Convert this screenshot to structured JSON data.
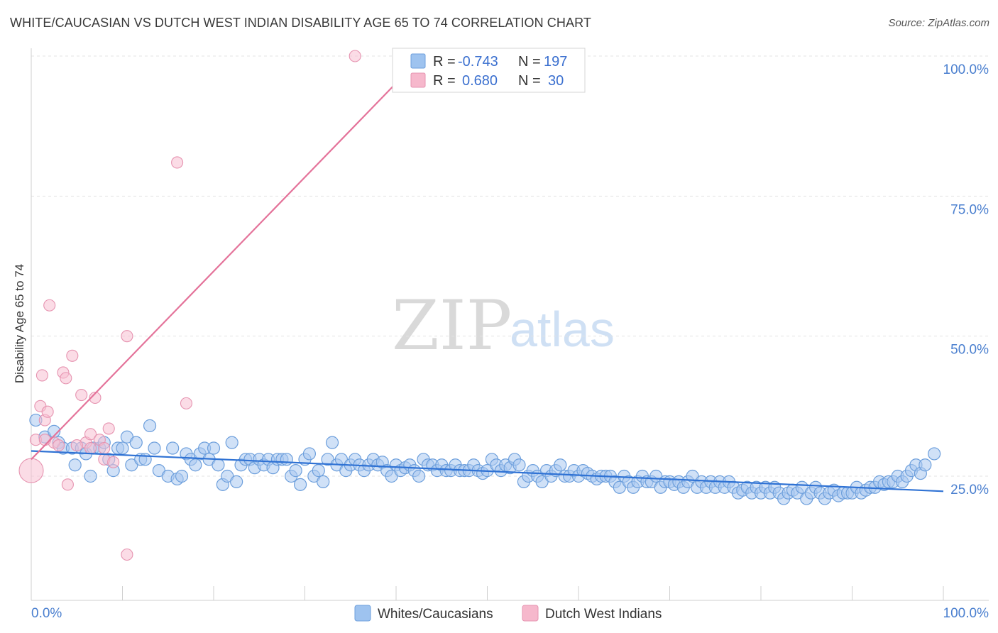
{
  "title": "WHITE/CAUCASIAN VS DUTCH WEST INDIAN DISABILITY AGE 65 TO 74 CORRELATION CHART",
  "source": "Source: ZipAtlas.com",
  "watermark": {
    "zip": "ZIP",
    "atlas": "atlas"
  },
  "legend_box": {
    "rows": [
      {
        "r_label": "R =",
        "r_value": "-0.743",
        "n_label": "N =",
        "n_value": "197",
        "color": "#9ec3ef"
      },
      {
        "r_label": "R =",
        "r_value": "0.680",
        "n_label": "N =",
        "n_value": "30",
        "color": "#f6b8cc"
      }
    ]
  },
  "bottom_legend": [
    {
      "label": "Whites/Caucasians",
      "color": "#9ec3ef"
    },
    {
      "label": "Dutch West Indians",
      "color": "#f6b8cc"
    }
  ],
  "chart_data": {
    "type": "scatter",
    "title": "WHITE/CAUCASIAN VS DUTCH WEST INDIAN DISABILITY AGE 65 TO 74 CORRELATION CHART",
    "xlabel": "",
    "ylabel": "Disability Age 65 to 74",
    "xlim": [
      0,
      100
    ],
    "ylim": [
      0,
      100
    ],
    "x_tick_labels": [
      {
        "value": 0,
        "label": "0.0%"
      },
      {
        "value": 100,
        "label": "100.0%"
      }
    ],
    "y_tick_labels": [
      {
        "value": 25,
        "label": "25.0%"
      },
      {
        "value": 50,
        "label": "50.0%"
      },
      {
        "value": 75,
        "label": "75.0%"
      },
      {
        "value": 100,
        "label": "100.0%"
      }
    ],
    "colors": {
      "blue_fill": "#a9c9f0",
      "blue_stroke": "#6d9fdc",
      "blue_line": "#2f72d4",
      "pink_fill": "#f7c0d2",
      "pink_stroke": "#e693b0",
      "pink_line": "#e4739a"
    },
    "series": [
      {
        "name": "Whites/Caucasians",
        "trend": {
          "x0": 0,
          "y0": 29.5,
          "x1": 100,
          "y1": 22.3
        },
        "points": [
          [
            0.5,
            35
          ],
          [
            1.5,
            32
          ],
          [
            2.5,
            33
          ],
          [
            3,
            31
          ],
          [
            3.5,
            30
          ],
          [
            4.5,
            30
          ],
          [
            4.8,
            27
          ],
          [
            5.5,
            30
          ],
          [
            6,
            29
          ],
          [
            6.5,
            25
          ],
          [
            6.8,
            30
          ],
          [
            7.5,
            30
          ],
          [
            8,
            31
          ],
          [
            8.5,
            28
          ],
          [
            9,
            26
          ],
          [
            9.5,
            30
          ],
          [
            10,
            30
          ],
          [
            10.5,
            32
          ],
          [
            11,
            27
          ],
          [
            11.5,
            31
          ],
          [
            12,
            28
          ],
          [
            12.5,
            28
          ],
          [
            13,
            34
          ],
          [
            13.5,
            30
          ],
          [
            14,
            26
          ],
          [
            15,
            25
          ],
          [
            15.5,
            30
          ],
          [
            16,
            24.5
          ],
          [
            16.5,
            25
          ],
          [
            17,
            29
          ],
          [
            17.5,
            28
          ],
          [
            18,
            27
          ],
          [
            18.5,
            29
          ],
          [
            19,
            30
          ],
          [
            19.5,
            28
          ],
          [
            20,
            30
          ],
          [
            20.5,
            27
          ],
          [
            21,
            23.5
          ],
          [
            21.5,
            25
          ],
          [
            22,
            31
          ],
          [
            22.5,
            24
          ],
          [
            23,
            27
          ],
          [
            23.5,
            28
          ],
          [
            24,
            28
          ],
          [
            24.5,
            26.5
          ],
          [
            25,
            28
          ],
          [
            25.5,
            27
          ],
          [
            26,
            28
          ],
          [
            26.5,
            26.5
          ],
          [
            27,
            28
          ],
          [
            27.5,
            28
          ],
          [
            28,
            28
          ],
          [
            28.5,
            25
          ],
          [
            29,
            26
          ],
          [
            29.5,
            23.5
          ],
          [
            30,
            28
          ],
          [
            30.5,
            29
          ],
          [
            31,
            25
          ],
          [
            31.5,
            26
          ],
          [
            32,
            24
          ],
          [
            32.5,
            28
          ],
          [
            33,
            31
          ],
          [
            33.5,
            27
          ],
          [
            34,
            28
          ],
          [
            34.5,
            26
          ],
          [
            35,
            27
          ],
          [
            35.5,
            28
          ],
          [
            36,
            27
          ],
          [
            36.5,
            26
          ],
          [
            37,
            27
          ],
          [
            37.5,
            28
          ],
          [
            38,
            27
          ],
          [
            38.5,
            27.5
          ],
          [
            39,
            26
          ],
          [
            39.5,
            25
          ],
          [
            40,
            27
          ],
          [
            40.5,
            26
          ],
          [
            41,
            26.5
          ],
          [
            41.5,
            27
          ],
          [
            42,
            26
          ],
          [
            42.5,
            25
          ],
          [
            43,
            28
          ],
          [
            43.5,
            27
          ],
          [
            44,
            27
          ],
          [
            44.5,
            26
          ],
          [
            45,
            27
          ],
          [
            45.5,
            26
          ],
          [
            46,
            26
          ],
          [
            46.5,
            27
          ],
          [
            47,
            26
          ],
          [
            47.5,
            26
          ],
          [
            48,
            26
          ],
          [
            48.5,
            27
          ],
          [
            49,
            26
          ],
          [
            49.5,
            25.5
          ],
          [
            50,
            26
          ],
          [
            50.5,
            28
          ],
          [
            51,
            27
          ],
          [
            51.5,
            26
          ],
          [
            52,
            27
          ],
          [
            52.5,
            26.5
          ],
          [
            53,
            28
          ],
          [
            53.5,
            27
          ],
          [
            54,
            24
          ],
          [
            54.5,
            25
          ],
          [
            55,
            26
          ],
          [
            55.5,
            25
          ],
          [
            56,
            24
          ],
          [
            56.5,
            26
          ],
          [
            57,
            25
          ],
          [
            57.5,
            26
          ],
          [
            58,
            27
          ],
          [
            58.5,
            25
          ],
          [
            59,
            25
          ],
          [
            59.5,
            26
          ],
          [
            60,
            25
          ],
          [
            60.5,
            26
          ],
          [
            61,
            25.5
          ],
          [
            61.5,
            25
          ],
          [
            62,
            24.5
          ],
          [
            62.5,
            25
          ],
          [
            63,
            25
          ],
          [
            63.5,
            25
          ],
          [
            64,
            24
          ],
          [
            64.5,
            23
          ],
          [
            65,
            25
          ],
          [
            65.5,
            24
          ],
          [
            66,
            23
          ],
          [
            66.5,
            24
          ],
          [
            67,
            25
          ],
          [
            67.5,
            24
          ],
          [
            68,
            24
          ],
          [
            68.5,
            25
          ],
          [
            69,
            23
          ],
          [
            69.5,
            24
          ],
          [
            70,
            24
          ],
          [
            70.5,
            23.5
          ],
          [
            71,
            24
          ],
          [
            71.5,
            23
          ],
          [
            72,
            24
          ],
          [
            72.5,
            25
          ],
          [
            73,
            23
          ],
          [
            73.5,
            24
          ],
          [
            74,
            23
          ],
          [
            74.5,
            24
          ],
          [
            75,
            23
          ],
          [
            75.5,
            24
          ],
          [
            76,
            23
          ],
          [
            76.5,
            24
          ],
          [
            77,
            23
          ],
          [
            77.5,
            22
          ],
          [
            78,
            22.5
          ],
          [
            78.5,
            23
          ],
          [
            79,
            22
          ],
          [
            79.5,
            23
          ],
          [
            80,
            22
          ],
          [
            80.5,
            23
          ],
          [
            81,
            22
          ],
          [
            81.5,
            23
          ],
          [
            82,
            22
          ],
          [
            82.5,
            21
          ],
          [
            83,
            22
          ],
          [
            83.5,
            22.5
          ],
          [
            84,
            22
          ],
          [
            84.5,
            23
          ],
          [
            85,
            21
          ],
          [
            85.5,
            22
          ],
          [
            86,
            23
          ],
          [
            86.5,
            22
          ],
          [
            87,
            21
          ],
          [
            87.5,
            22
          ],
          [
            88,
            22.5
          ],
          [
            88.5,
            21.5
          ],
          [
            89,
            22
          ],
          [
            89.5,
            22
          ],
          [
            90,
            22
          ],
          [
            90.5,
            23
          ],
          [
            91,
            22
          ],
          [
            91.5,
            22.5
          ],
          [
            92,
            23
          ],
          [
            92.5,
            23
          ],
          [
            93,
            24
          ],
          [
            93.5,
            23.5
          ],
          [
            94,
            24
          ],
          [
            94.5,
            24
          ],
          [
            95,
            25
          ],
          [
            95.5,
            24
          ],
          [
            96,
            25
          ],
          [
            96.5,
            26
          ],
          [
            97,
            27
          ],
          [
            97.5,
            25.5
          ],
          [
            98,
            27
          ],
          [
            99,
            29
          ]
        ]
      },
      {
        "name": "Dutch West Indians",
        "trend": {
          "x0": 0,
          "y0": 28,
          "x1": 40.5,
          "y1": 96
        },
        "points": [
          [
            0,
            26
          ],
          [
            0.5,
            31.5
          ],
          [
            1,
            37.5
          ],
          [
            1.2,
            43
          ],
          [
            1.5,
            35
          ],
          [
            1.8,
            36.5
          ],
          [
            2,
            55.5
          ],
          [
            2.5,
            31
          ],
          [
            3,
            30.5
          ],
          [
            3.5,
            43.5
          ],
          [
            3.8,
            42.5
          ],
          [
            4,
            23.5
          ],
          [
            4.5,
            46.5
          ],
          [
            5.5,
            39.5
          ],
          [
            6,
            31
          ],
          [
            6.5,
            32.5
          ],
          [
            6.5,
            30
          ],
          [
            7,
            39
          ],
          [
            7.5,
            31.5
          ],
          [
            8,
            28
          ],
          [
            8.5,
            33.5
          ],
          [
            9,
            27.5
          ],
          [
            10.5,
            11
          ],
          [
            10.5,
            50
          ],
          [
            16,
            81
          ],
          [
            17,
            38
          ],
          [
            35.5,
            100
          ],
          [
            1.5,
            31.5
          ],
          [
            5,
            30.5
          ],
          [
            8,
            30
          ]
        ]
      }
    ]
  }
}
